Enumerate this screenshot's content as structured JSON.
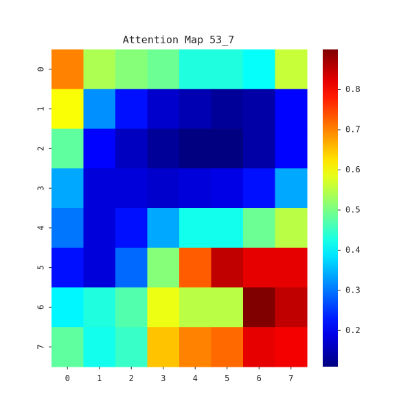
{
  "chart_data": {
    "type": "heatmap",
    "title": "Attention Map 53_7",
    "xlabel": "",
    "ylabel": "",
    "x_categories": [
      "0",
      "1",
      "2",
      "3",
      "4",
      "5",
      "6",
      "7"
    ],
    "y_categories": [
      "0",
      "1",
      "2",
      "3",
      "4",
      "5",
      "6",
      "7"
    ],
    "values": [
      [
        0.7,
        0.54,
        0.51,
        0.49,
        0.43,
        0.43,
        0.41,
        0.56
      ],
      [
        0.6,
        0.32,
        0.22,
        0.17,
        0.15,
        0.13,
        0.14,
        0.21
      ],
      [
        0.48,
        0.21,
        0.16,
        0.13,
        0.11,
        0.11,
        0.14,
        0.21
      ],
      [
        0.34,
        0.18,
        0.18,
        0.17,
        0.18,
        0.19,
        0.22,
        0.34
      ],
      [
        0.3,
        0.18,
        0.22,
        0.34,
        0.42,
        0.42,
        0.49,
        0.55
      ],
      [
        0.22,
        0.18,
        0.29,
        0.51,
        0.73,
        0.85,
        0.82,
        0.82
      ],
      [
        0.4,
        0.43,
        0.47,
        0.59,
        0.55,
        0.55,
        0.9,
        0.85
      ],
      [
        0.48,
        0.42,
        0.45,
        0.65,
        0.7,
        0.72,
        0.82,
        0.81
      ]
    ],
    "colormap": "jet",
    "vmin": 0.11,
    "vmax": 0.9,
    "colorbar_ticks": [
      0.2,
      0.3,
      0.4,
      0.5,
      0.6,
      0.7,
      0.8
    ],
    "grid": false,
    "colorbar_position": "right"
  }
}
